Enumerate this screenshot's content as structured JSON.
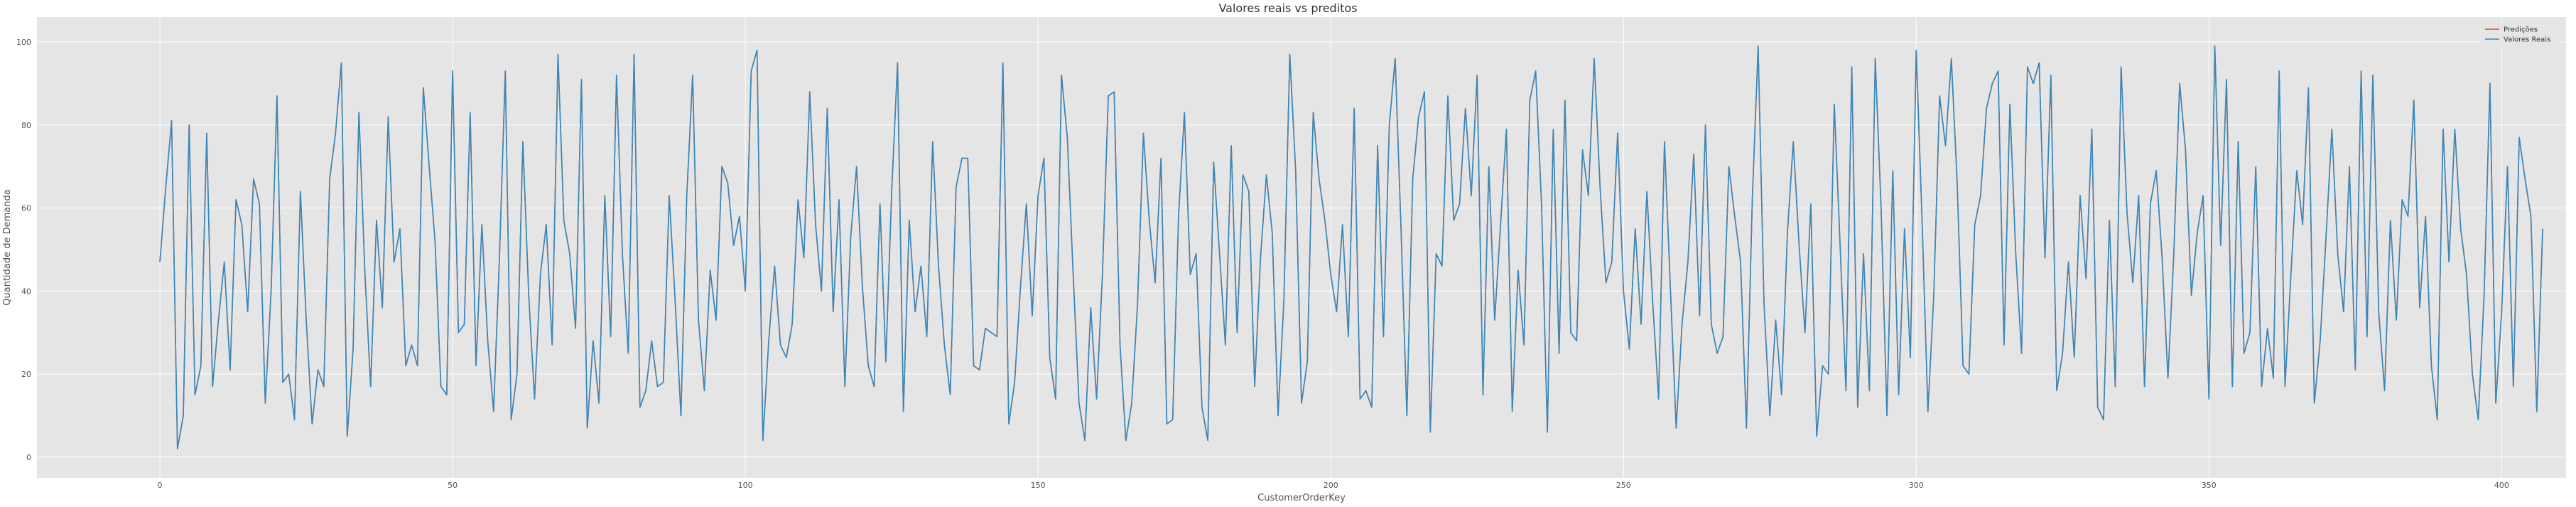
{
  "chart_data": {
    "type": "line",
    "title": "Valores reais vs preditos",
    "xlabel": "CustomerOrderKey",
    "ylabel": "Quantidade de Demanda",
    "xlim": [
      -21,
      411
    ],
    "ylim": [
      -5,
      106
    ],
    "xticks": [
      0,
      50,
      100,
      150,
      200,
      250,
      300,
      350,
      400
    ],
    "yticks": [
      0,
      20,
      40,
      60,
      80,
      100
    ],
    "grid": true,
    "legend_position": "top-right",
    "series": [
      {
        "name": "Predições",
        "color": "#e24a33",
        "values": [
          47,
          65,
          81,
          2,
          10,
          80,
          15,
          22,
          78,
          17,
          33,
          47,
          21,
          62,
          56,
          35,
          67,
          61,
          13,
          40,
          87,
          18,
          20,
          9,
          64,
          33,
          8,
          21,
          17,
          67,
          78,
          95,
          5,
          26,
          83,
          45,
          17,
          57,
          36,
          82,
          47,
          55,
          22,
          27,
          22,
          89,
          70,
          52,
          17,
          15,
          93,
          30,
          32,
          83,
          22,
          56,
          28,
          11,
          48,
          93,
          9,
          20,
          76,
          39,
          14,
          44,
          56,
          27,
          97,
          57,
          49,
          31,
          91,
          7,
          28,
          13,
          63,
          29,
          92,
          49,
          25,
          97,
          12,
          16,
          28,
          17,
          18,
          63,
          38,
          10,
          63,
          92,
          33,
          16,
          45,
          33,
          70,
          66,
          51,
          58,
          40,
          93,
          98,
          4,
          28,
          46,
          27,
          24,
          32,
          62,
          48,
          88,
          56,
          40,
          84,
          35,
          62,
          17,
          53,
          70,
          41,
          22,
          17,
          61,
          23,
          64,
          95,
          11,
          57,
          35,
          46,
          29,
          76,
          46,
          27,
          15,
          65,
          72,
          72,
          22,
          21,
          31,
          30,
          29,
          95,
          8,
          18,
          41,
          61,
          34,
          63,
          72,
          24,
          14,
          92,
          77,
          44,
          13,
          4,
          36,
          14,
          44,
          87,
          88,
          27,
          4,
          13,
          37,
          78,
          57,
          42,
          72,
          8,
          9,
          58,
          83,
          44,
          49,
          12,
          4,
          71,
          49,
          27,
          75,
          30,
          68,
          64,
          17,
          48,
          68,
          54,
          10,
          38,
          97,
          69,
          13,
          23,
          83,
          67,
          57,
          44,
          35,
          56,
          29,
          84,
          14,
          16,
          12,
          75,
          29,
          80,
          96,
          55,
          10,
          67,
          82,
          88,
          6,
          49,
          46,
          87,
          57,
          61,
          84,
          63,
          92,
          15,
          70,
          33,
          56,
          79,
          11,
          45,
          27,
          86,
          93,
          61,
          6,
          79,
          25,
          86,
          30,
          28,
          74,
          63,
          96,
          65,
          42,
          47,
          78,
          40,
          26,
          55,
          32,
          64,
          37,
          14,
          76,
          41,
          7,
          32,
          47,
          73,
          34,
          80,
          32,
          25,
          29,
          70,
          58,
          47,
          7,
          62,
          99,
          37,
          10,
          33,
          15,
          54,
          76,
          51,
          30,
          61,
          5,
          22,
          20,
          85,
          51,
          16,
          94,
          12,
          49,
          16,
          96,
          60,
          10,
          69,
          15,
          55,
          24,
          98,
          57,
          11,
          39,
          87,
          75,
          96,
          66,
          22,
          20,
          56,
          63,
          84,
          90,
          93,
          27,
          85,
          49,
          25,
          94,
          90,
          95,
          48,
          92,
          16,
          25,
          47,
          24,
          63,
          43,
          79,
          12,
          9,
          57,
          17,
          94,
          59,
          42,
          63,
          17,
          61,
          69,
          48,
          19,
          49,
          90,
          74,
          39,
          54,
          63,
          14,
          99,
          51,
          91,
          17,
          76,
          25,
          30,
          70,
          17,
          31,
          19,
          93,
          17,
          44,
          69,
          56,
          89,
          13,
          28,
          53,
          79,
          49,
          35,
          70,
          21,
          93,
          29,
          92,
          35,
          16,
          57,
          33,
          62,
          58,
          86,
          36,
          58,
          22,
          9,
          79,
          47,
          79,
          55,
          44,
          20,
          9,
          39,
          90,
          13,
          35,
          70,
          17,
          77,
          67,
          58,
          11,
          55
        ]
      },
      {
        "name": "Valores Reais",
        "color": "#348abd",
        "values": [
          47,
          65,
          81,
          2,
          10,
          80,
          15,
          22,
          78,
          17,
          33,
          47,
          21,
          62,
          56,
          35,
          67,
          61,
          13,
          40,
          87,
          18,
          20,
          9,
          64,
          33,
          8,
          21,
          17,
          67,
          78,
          95,
          5,
          26,
          83,
          45,
          17,
          57,
          36,
          82,
          47,
          55,
          22,
          27,
          22,
          89,
          70,
          52,
          17,
          15,
          93,
          30,
          32,
          83,
          22,
          56,
          28,
          11,
          48,
          93,
          9,
          20,
          76,
          39,
          14,
          44,
          56,
          27,
          97,
          57,
          49,
          31,
          91,
          7,
          28,
          13,
          63,
          29,
          92,
          49,
          25,
          97,
          12,
          16,
          28,
          17,
          18,
          63,
          38,
          10,
          63,
          92,
          33,
          16,
          45,
          33,
          70,
          66,
          51,
          58,
          40,
          93,
          98,
          4,
          28,
          46,
          27,
          24,
          32,
          62,
          48,
          88,
          56,
          40,
          84,
          35,
          62,
          17,
          53,
          70,
          41,
          22,
          17,
          61,
          23,
          64,
          95,
          11,
          57,
          35,
          46,
          29,
          76,
          46,
          27,
          15,
          65,
          72,
          72,
          22,
          21,
          31,
          30,
          29,
          95,
          8,
          18,
          41,
          61,
          34,
          63,
          72,
          24,
          14,
          92,
          77,
          44,
          13,
          4,
          36,
          14,
          44,
          87,
          88,
          27,
          4,
          13,
          37,
          78,
          57,
          42,
          72,
          8,
          9,
          58,
          83,
          44,
          49,
          12,
          4,
          71,
          49,
          27,
          75,
          30,
          68,
          64,
          17,
          48,
          68,
          54,
          10,
          38,
          97,
          69,
          13,
          23,
          83,
          67,
          57,
          44,
          35,
          56,
          29,
          84,
          14,
          16,
          12,
          75,
          29,
          80,
          96,
          55,
          10,
          67,
          82,
          88,
          6,
          49,
          46,
          87,
          57,
          61,
          84,
          63,
          92,
          15,
          70,
          33,
          56,
          79,
          11,
          45,
          27,
          86,
          93,
          61,
          6,
          79,
          25,
          86,
          30,
          28,
          74,
          63,
          96,
          65,
          42,
          47,
          78,
          40,
          26,
          55,
          32,
          64,
          37,
          14,
          76,
          41,
          7,
          32,
          47,
          73,
          34,
          80,
          32,
          25,
          29,
          70,
          58,
          47,
          7,
          62,
          99,
          37,
          10,
          33,
          15,
          54,
          76,
          51,
          30,
          61,
          5,
          22,
          20,
          85,
          51,
          16,
          94,
          12,
          49,
          16,
          96,
          60,
          10,
          69,
          15,
          55,
          24,
          98,
          57,
          11,
          39,
          87,
          75,
          96,
          66,
          22,
          20,
          56,
          63,
          84,
          90,
          93,
          27,
          85,
          49,
          25,
          94,
          90,
          95,
          48,
          92,
          16,
          25,
          47,
          24,
          63,
          43,
          79,
          12,
          9,
          57,
          17,
          94,
          59,
          42,
          63,
          17,
          61,
          69,
          48,
          19,
          49,
          90,
          74,
          39,
          54,
          63,
          14,
          99,
          51,
          91,
          17,
          76,
          25,
          30,
          70,
          17,
          31,
          19,
          93,
          17,
          44,
          69,
          56,
          89,
          13,
          28,
          53,
          79,
          49,
          35,
          70,
          21,
          93,
          29,
          92,
          35,
          16,
          57,
          33,
          62,
          58,
          86,
          36,
          58,
          22,
          9,
          79,
          47,
          79,
          55,
          44,
          20,
          9,
          39,
          90,
          13,
          35,
          70,
          17,
          77,
          67,
          58,
          11,
          55
        ]
      }
    ]
  }
}
